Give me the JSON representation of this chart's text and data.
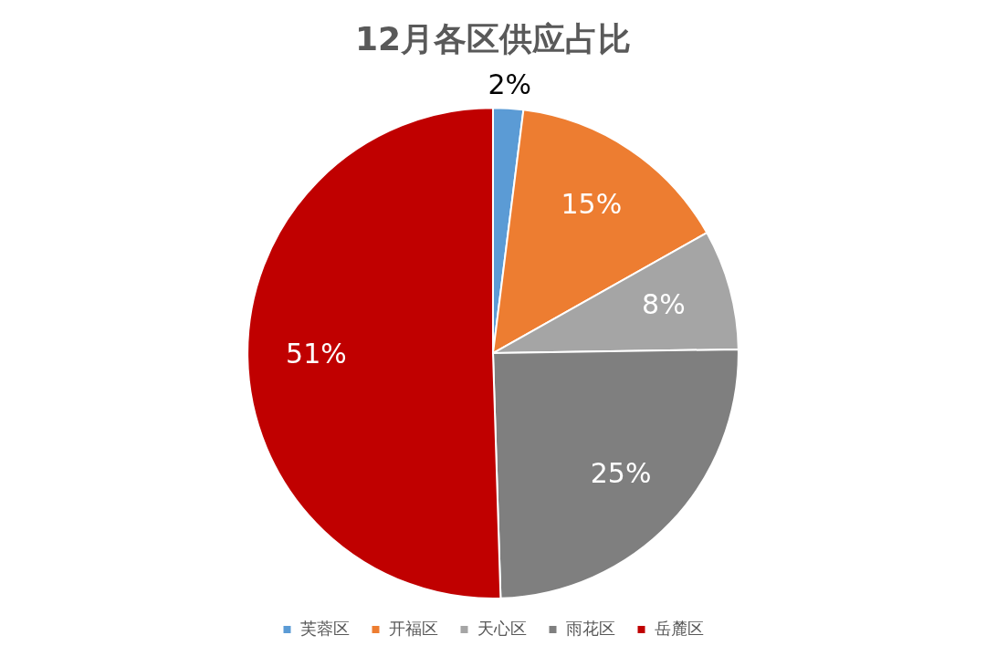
{
  "chart_data": {
    "type": "pie",
    "title": "12月各区供应占比",
    "categories": [
      "芙蓉区",
      "开福区",
      "天心区",
      "雨花区",
      "岳麓区"
    ],
    "values": [
      2,
      15,
      8,
      25,
      51
    ],
    "value_labels": [
      "2%",
      "15%",
      "8%",
      "25%",
      "51%"
    ],
    "colors": [
      "#5b9bd5",
      "#ed7d31",
      "#a5a5a5",
      "#7f7f7f",
      "#c00000"
    ],
    "legend": "bottom"
  }
}
